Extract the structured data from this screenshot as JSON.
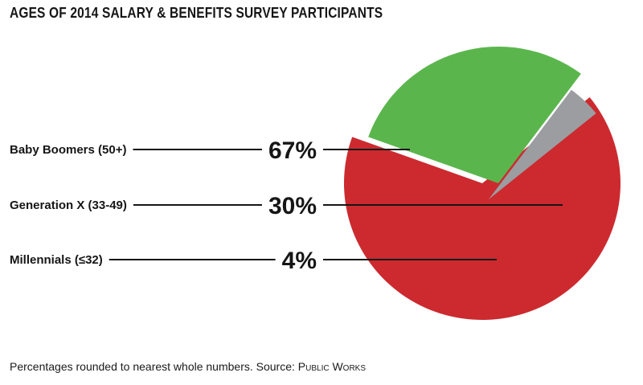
{
  "chart_data": {
    "type": "pie",
    "title": "AGES OF 2014 SALARY & BENEFITS SURVEY PARTICIPANTS",
    "categories": [
      "Baby Boomers (50+)",
      "Generation X (33-49)",
      "Millennials (≤32)"
    ],
    "values": [
      67,
      30,
      4
    ],
    "value_labels": [
      "67%",
      "30%",
      "4%"
    ],
    "unit": "%",
    "legend": "left",
    "exploded": [
      "Generation X (33-49)",
      "Millennials (≤32)"
    ]
  },
  "colors": {
    "baby_boomers": "#cc2a2f",
    "generation_x": "#5ab64c",
    "millennials": "#9b9da0",
    "text": "#161616"
  },
  "footnote": {
    "text": "Percentages rounded to nearest whole numbers. Source: ",
    "source": "Public Works"
  }
}
